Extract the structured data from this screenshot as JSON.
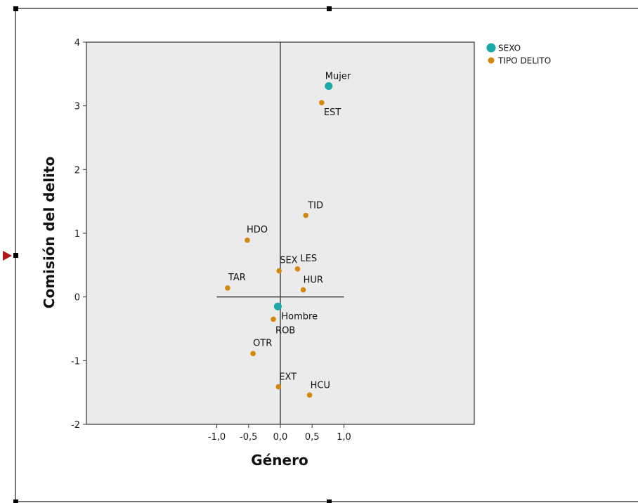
{
  "chart_data": {
    "type": "scatter",
    "xlabel": "Género",
    "ylabel": "Comisión del delito",
    "xlim": [
      -3.05,
      3.05
    ],
    "ylim": [
      -2,
      4
    ],
    "x_ticks": [
      -1.0,
      -0.5,
      0.0,
      0.5,
      1.0
    ],
    "x_tick_labels": [
      "-1,0",
      "-0,5",
      "0,0",
      "0,5",
      "1,0"
    ],
    "y_ticks": [
      -2,
      -1,
      0,
      1,
      2,
      3,
      4
    ],
    "y_tick_labels": [
      "-2",
      "-1",
      "0",
      "1",
      "2",
      "3",
      "4"
    ],
    "legend_position": "top-right",
    "background": "#ebebeb",
    "series": [
      {
        "name": "SEXO",
        "color": "#1aa8a8",
        "points": [
          {
            "label": "Mujer",
            "x": 0.76,
            "y": 3.31
          },
          {
            "label": "Hombre",
            "x": -0.04,
            "y": -0.15
          }
        ]
      },
      {
        "name": "TIPO DELITO",
        "color": "#d4880e",
        "points": [
          {
            "label": "EST",
            "x": 0.65,
            "y": 3.05
          },
          {
            "label": "TID",
            "x": 0.4,
            "y": 1.28
          },
          {
            "label": "HDO",
            "x": -0.52,
            "y": 0.89
          },
          {
            "label": "SEX",
            "x": -0.02,
            "y": 0.41
          },
          {
            "label": "LES",
            "x": 0.27,
            "y": 0.44
          },
          {
            "label": "HUR",
            "x": 0.36,
            "y": 0.11
          },
          {
            "label": "TAR",
            "x": -0.83,
            "y": 0.14
          },
          {
            "label": "ROB",
            "x": -0.11,
            "y": -0.35
          },
          {
            "label": "OTR",
            "x": -0.43,
            "y": -0.89
          },
          {
            "label": "EXT",
            "x": -0.03,
            "y": -1.41
          },
          {
            "label": "HCU",
            "x": 0.46,
            "y": -1.54
          }
        ]
      }
    ]
  }
}
